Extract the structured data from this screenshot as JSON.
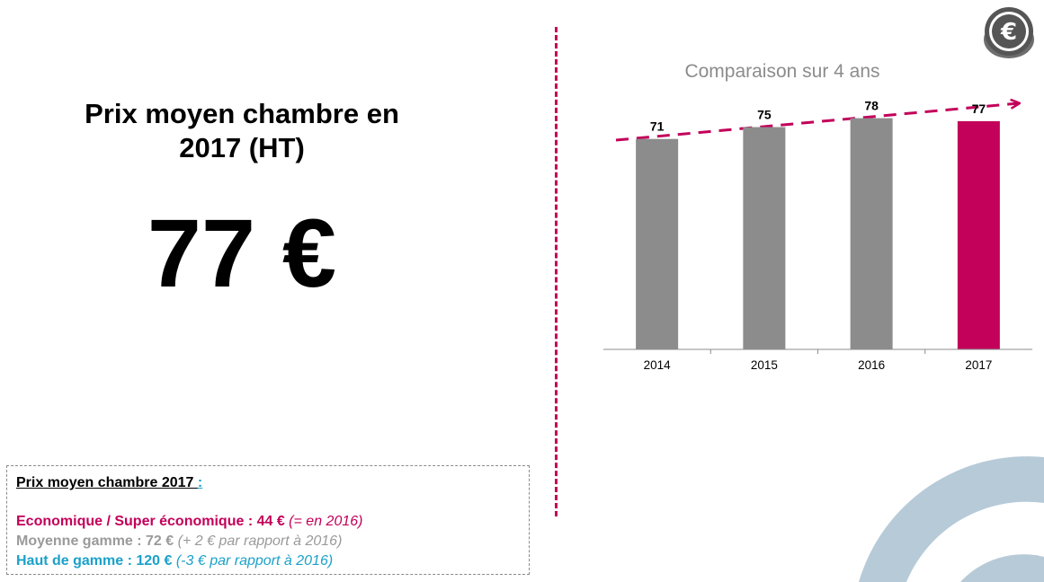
{
  "slide": {
    "title_line1": "Prix moyen chambre en",
    "title_line2": "2017 (HT)",
    "big_value": "77 €"
  },
  "info_box": {
    "heading": "Prix moyen chambre 2017 ",
    "heading_colon": ":",
    "lines": [
      {
        "label": "Economique / Super économique :  44 €",
        "note": " (=  en 2016)",
        "color": "#c3005a"
      },
      {
        "label": "Moyenne gamme : 72 €",
        "note": " (+ 2 € par rapport à 2016)",
        "color": "#9a9a9a"
      },
      {
        "label": "Haut de gamme : 120 €",
        "note": " (-3 € par rapport à  2016)",
        "color": "#1ba1c9"
      }
    ]
  },
  "colors": {
    "accent": "#c3005a",
    "bar_gray": "#8c8c8c",
    "muted_text": "#8c8c8c",
    "teal": "#1ba1c9",
    "decor_blue": "#b7cad8"
  },
  "icons": {
    "top_right": "euro-coin-icon",
    "trend": "dashed-trend-arrow-icon"
  },
  "chart_data": {
    "type": "bar",
    "title": "Comparaison sur 4 ans",
    "categories": [
      "2014",
      "2015",
      "2016",
      "2017"
    ],
    "values": [
      71,
      75,
      78,
      77
    ],
    "data_labels": [
      "71",
      "75",
      "78",
      "77"
    ],
    "bar_colors": [
      "#8c8c8c",
      "#8c8c8c",
      "#8c8c8c",
      "#c3005a"
    ],
    "ylim": [
      0,
      80
    ],
    "xlabel": "",
    "ylabel": "",
    "grid": false,
    "legend": "none",
    "trend_arrow": "up"
  }
}
